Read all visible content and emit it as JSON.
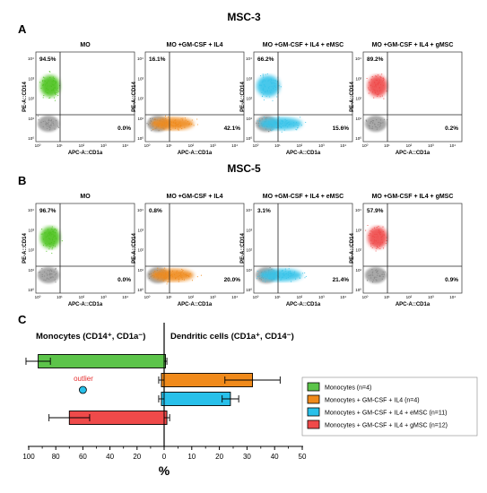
{
  "figure": {
    "panels": [
      {
        "letter": "A",
        "title": "MSC-3",
        "plots": [
          {
            "title": "MO",
            "upper_left": "94.5%",
            "lower_right": "0.0%",
            "color": "#4cc21e",
            "cluster": "upper"
          },
          {
            "title": "MO +GM-CSF + IL4",
            "upper_left": "16.1%",
            "lower_right": "42.1%",
            "color": "#ef8a1b",
            "cluster": "lower"
          },
          {
            "title": "MO +GM-CSF + IL4 + eMSC",
            "upper_left": "66.2%",
            "lower_right": "15.6%",
            "color": "#34c3e9",
            "cluster": "both"
          },
          {
            "title": "MO +GM-CSF + IL4 + gMSC",
            "upper_left": "89.2%",
            "lower_right": "0.2%",
            "color": "#ef4a4a",
            "cluster": "upper"
          }
        ]
      },
      {
        "letter": "B",
        "title": "MSC-5",
        "plots": [
          {
            "title": "MO",
            "upper_left": "96.7%",
            "lower_right": "0.0%",
            "color": "#4cc21e",
            "cluster": "upper"
          },
          {
            "title": "MO +GM-CSF + IL4",
            "upper_left": "0.8%",
            "lower_right": "20.0%",
            "color": "#ef8a1b",
            "cluster": "lower"
          },
          {
            "title": "MO +GM-CSF + IL4 + eMSC",
            "upper_left": "3.1%",
            "lower_right": "21.4%",
            "color": "#34c3e9",
            "cluster": "lower"
          },
          {
            "title": "MO +GM-CSF + IL4 + gMSC",
            "upper_left": "57.9%",
            "lower_right": "0.9%",
            "color": "#ef4a4a",
            "cluster": "upper"
          }
        ]
      }
    ],
    "axis": {
      "xlabel": "APC-A::CD1a",
      "ylabel": "PE-A::CD14",
      "ticks": [
        "10⁰",
        "10¹",
        "10²",
        "10³",
        "10⁴"
      ]
    },
    "panel_c_letter": "C"
  },
  "chart_data": {
    "type": "bar",
    "orientation": "horizontal",
    "left_header": "Monocytes (CD14⁺, CD1a⁻)",
    "right_header": "Dendritic cells (CD1a⁺, CD14⁻)",
    "xlabel": "%",
    "xlim_left": [
      0,
      100
    ],
    "xlim_right": [
      0,
      50
    ],
    "xticks_left": [
      "100",
      "80",
      "60",
      "40",
      "20",
      "0"
    ],
    "xticks_right": [
      "10",
      "20",
      "30",
      "40",
      "50"
    ],
    "annotation": "outlier",
    "outlier_side": "left",
    "outlier_value": 60,
    "outlier_row": 2,
    "series": [
      {
        "name": "Monocytes (n=4)",
        "color": "#5cc44a",
        "left_value": 93,
        "left_err": 9,
        "right_value": 0.5,
        "right_err": 0.5
      },
      {
        "name": "Monocytes + GM-CSF + IL4 (n=4)",
        "color": "#f08a1b",
        "left_value": 2,
        "left_err": 2,
        "right_value": 32,
        "right_err": 10
      },
      {
        "name": "Monocytes + GM-CSF + IL4 + eMSC (n=11)",
        "color": "#28c0ea",
        "left_value": 2,
        "left_err": 2,
        "right_value": 24,
        "right_err": 3
      },
      {
        "name": "Monocytes + GM-CSF + IL4 + gMSC (n=12)",
        "color": "#ef4a4a",
        "left_value": 70,
        "left_err": 15,
        "right_value": 1,
        "right_err": 1
      }
    ]
  }
}
